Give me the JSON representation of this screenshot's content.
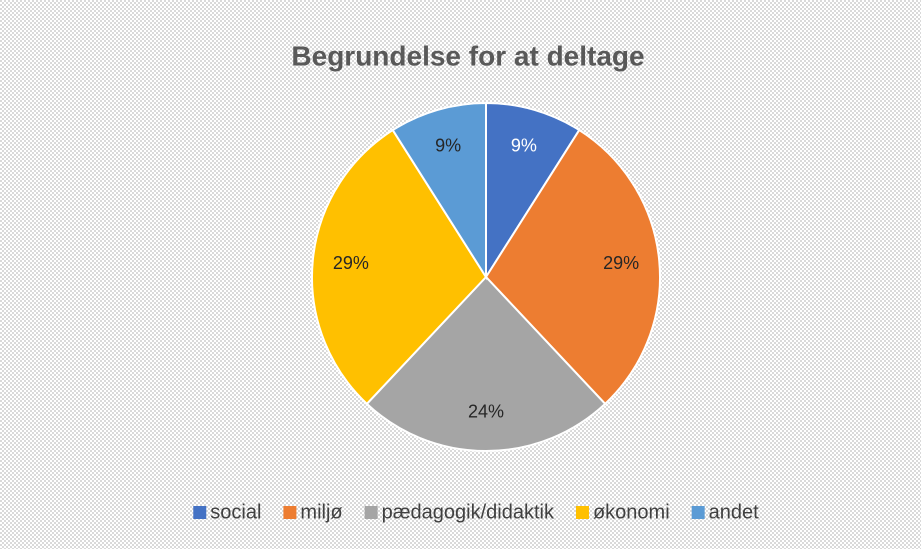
{
  "chart_data": {
    "type": "pie",
    "title": "Begrundelse for at deltage",
    "categories": [
      "social",
      "miljø",
      "pædagogik/didaktik",
      "økonomi",
      "andet"
    ],
    "values": [
      9,
      29,
      24,
      29,
      9
    ],
    "value_labels": [
      "9%",
      "29%",
      "24%",
      "29%",
      "9%"
    ],
    "colors": [
      "#4472c4",
      "#ed7d31",
      "#a5a5a5",
      "#ffc000",
      "#5b9bd5"
    ],
    "legend": "bottom"
  }
}
